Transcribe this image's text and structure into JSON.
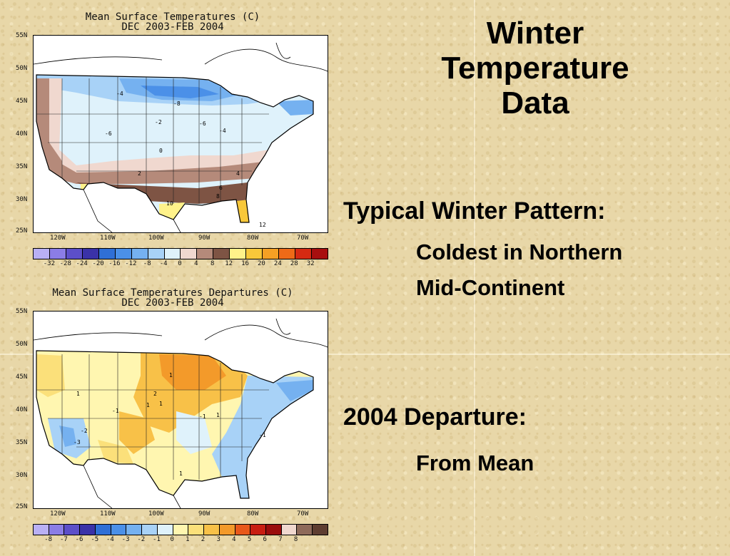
{
  "slide": {
    "title": "Winter Temperature Data",
    "title_lines": [
      "Winter",
      "Temperature",
      "Data"
    ],
    "heading1": "Typical Winter Pattern:",
    "sub1_lines": [
      "Coldest in Northern",
      "Mid-Continent"
    ],
    "heading2": "2004 Departure:",
    "sub2": "From Mean"
  },
  "maps": {
    "latitude_labels": [
      "55N",
      "50N",
      "45N",
      "40N",
      "35N",
      "30N",
      "25N"
    ],
    "longitude_labels": [
      "120W",
      "110W",
      "100W",
      "90W",
      "80W",
      "70W"
    ],
    "mean": {
      "title_line1": "Mean Surface Temperatures (C)",
      "title_line2": "DEC 2003-FEB 2004",
      "legend_ticks": [
        "-32",
        "-28",
        "-24",
        "-20",
        "-16",
        "-12",
        "-8",
        "-4",
        "0",
        "4",
        "8",
        "12",
        "16",
        "20",
        "24",
        "28",
        "32"
      ],
      "legend_colors": [
        "#b9b0f5",
        "#8b7de6",
        "#5c4fc9",
        "#3a32a8",
        "#2f6fd6",
        "#4b90e8",
        "#75b1f0",
        "#a8d2f7",
        "#dff2fb",
        "#f0d8cf",
        "#b58a7a",
        "#7e5444",
        "#fff28a",
        "#f8c83a",
        "#f5a024",
        "#ee6a17",
        "#d52a12",
        "#a80f0f"
      ],
      "contour_labels": [
        "-4",
        "-8",
        "-6",
        "-2",
        "0",
        "2",
        "4",
        "6",
        "8",
        "10",
        "-6",
        "-4",
        "12"
      ]
    },
    "departure": {
      "title_line1": "Mean Surface Temperatures Departures (C)",
      "title_line2": "DEC 2003-FEB 2004",
      "legend_ticks": [
        "-8",
        "-7",
        "-6",
        "-5",
        "-4",
        "-3",
        "-2",
        "-1",
        "0",
        "1",
        "2",
        "3",
        "4",
        "5",
        "6",
        "7",
        "8"
      ],
      "legend_colors": [
        "#b9b0f5",
        "#8b7de6",
        "#5c4fc9",
        "#3a32a8",
        "#2f6fd6",
        "#4b90e8",
        "#75b1f0",
        "#a8d2f7",
        "#dff2fb",
        "#fff6b0",
        "#fbe07a",
        "#f8c148",
        "#f39a2a",
        "#e8581a",
        "#c81e12",
        "#9a0d0d",
        "#f0d8cf",
        "#8e6a5a",
        "#5e3d30"
      ],
      "contour_labels": [
        "1",
        "2",
        "1",
        "-1",
        "1",
        "-1",
        "-2",
        "-3",
        "1",
        "1",
        "-1",
        "1"
      ]
    }
  }
}
